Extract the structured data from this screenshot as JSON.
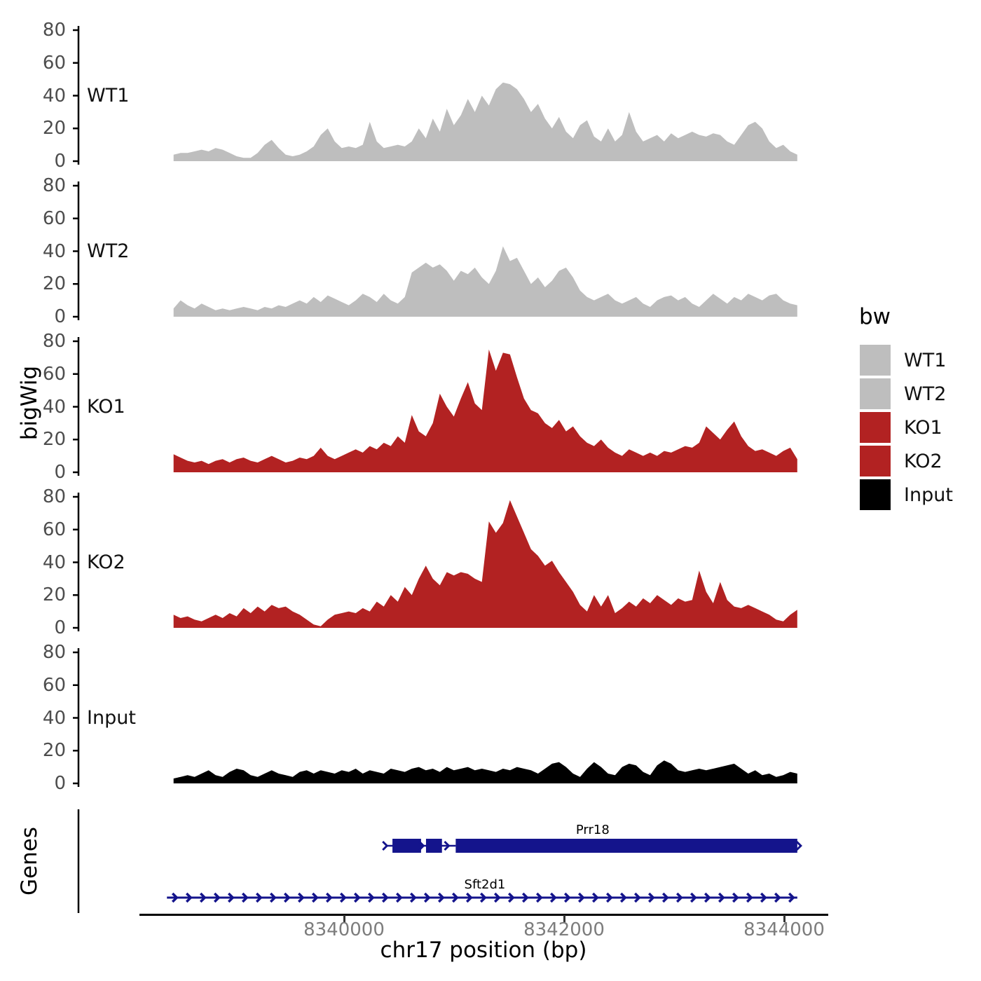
{
  "figure": {
    "y_axis_label": "bigWig",
    "genes_axis_label": "Genes",
    "x_axis": {
      "title": "chr17 position (bp)",
      "ticks": [
        {
          "bp": 8340000,
          "label": "8340000"
        },
        {
          "bp": 8342000,
          "label": "8342000"
        },
        {
          "bp": 8344000,
          "label": "8344000"
        }
      ]
    },
    "legend": {
      "title": "bw",
      "entries": [
        {
          "label": "WT1",
          "color": "#BEBEBE"
        },
        {
          "label": "WT2",
          "color": "#BEBEBE"
        },
        {
          "label": "KO1",
          "color": "#B22222"
        },
        {
          "label": "KO2",
          "color": "#B22222"
        },
        {
          "label": "Input",
          "color": "#000000"
        }
      ]
    }
  },
  "chart_data": {
    "type": "area",
    "title": "",
    "xlabel": "chr17 position (bp)",
    "ylabel": "bigWig",
    "x_range_bp": [
      8338450,
      8344120
    ],
    "ylim": [
      0,
      80
    ],
    "yticks": [
      0,
      20,
      40,
      60,
      80
    ],
    "grid": false,
    "legend_position": "right",
    "tracks": [
      {
        "name": "WT1",
        "color": "#BEBEBE",
        "values": [
          4,
          5,
          5,
          6,
          7,
          6,
          8,
          7,
          5,
          3,
          2,
          2,
          5,
          10,
          13,
          8,
          4,
          3,
          4,
          6,
          9,
          16,
          20,
          12,
          8,
          9,
          8,
          10,
          24,
          12,
          8,
          9,
          10,
          9,
          12,
          20,
          14,
          26,
          18,
          32,
          22,
          28,
          38,
          30,
          40,
          34,
          44,
          48,
          47,
          44,
          38,
          30,
          35,
          26,
          20,
          27,
          18,
          14,
          22,
          25,
          15,
          12,
          20,
          12,
          16,
          30,
          18,
          12,
          14,
          16,
          12,
          17,
          14,
          16,
          18,
          16,
          15,
          17,
          16,
          12,
          10,
          16,
          22,
          24,
          20,
          12,
          8,
          10,
          6,
          4
        ]
      },
      {
        "name": "WT2",
        "color": "#BEBEBE",
        "values": [
          5,
          10,
          7,
          5,
          8,
          6,
          4,
          5,
          4,
          5,
          6,
          5,
          4,
          6,
          5,
          7,
          6,
          8,
          10,
          8,
          12,
          9,
          13,
          11,
          9,
          7,
          10,
          14,
          12,
          9,
          14,
          10,
          8,
          12,
          27,
          30,
          33,
          30,
          32,
          28,
          22,
          28,
          26,
          30,
          24,
          20,
          28,
          43,
          34,
          36,
          28,
          20,
          24,
          18,
          22,
          28,
          30,
          24,
          16,
          12,
          10,
          12,
          14,
          10,
          8,
          10,
          12,
          8,
          6,
          10,
          12,
          13,
          10,
          12,
          8,
          6,
          10,
          14,
          11,
          8,
          12,
          10,
          14,
          12,
          10,
          13,
          14,
          10,
          8,
          7
        ]
      },
      {
        "name": "KO1",
        "color": "#B22222",
        "values": [
          11,
          9,
          7,
          6,
          7,
          5,
          7,
          8,
          6,
          8,
          9,
          7,
          6,
          8,
          10,
          8,
          6,
          7,
          9,
          8,
          10,
          15,
          10,
          8,
          10,
          12,
          14,
          12,
          16,
          14,
          18,
          16,
          22,
          18,
          35,
          25,
          22,
          30,
          48,
          40,
          34,
          45,
          55,
          42,
          38,
          75,
          62,
          73,
          72,
          58,
          45,
          38,
          36,
          30,
          27,
          32,
          25,
          28,
          22,
          18,
          16,
          20,
          15,
          12,
          10,
          14,
          12,
          10,
          12,
          10,
          13,
          12,
          14,
          16,
          15,
          18,
          28,
          24,
          20,
          26,
          31,
          22,
          16,
          13,
          14,
          12,
          10,
          13,
          15,
          8
        ]
      },
      {
        "name": "KO2",
        "color": "#B22222",
        "values": [
          8,
          6,
          7,
          5,
          4,
          6,
          8,
          6,
          9,
          7,
          12,
          9,
          13,
          10,
          14,
          12,
          13,
          10,
          8,
          5,
          2,
          1,
          5,
          8,
          9,
          10,
          9,
          12,
          10,
          16,
          13,
          20,
          16,
          25,
          20,
          30,
          38,
          30,
          26,
          34,
          32,
          34,
          33,
          30,
          28,
          65,
          58,
          64,
          78,
          68,
          58,
          48,
          44,
          38,
          41,
          34,
          28,
          22,
          14,
          10,
          20,
          13,
          20,
          9,
          12,
          16,
          13,
          18,
          15,
          20,
          17,
          14,
          18,
          16,
          17,
          35,
          22,
          15,
          28,
          17,
          13,
          12,
          14,
          12,
          10,
          8,
          5,
          4,
          8,
          11
        ]
      },
      {
        "name": "Input",
        "color": "#000000",
        "values": [
          3,
          4,
          5,
          4,
          6,
          8,
          5,
          4,
          7,
          9,
          8,
          5,
          4,
          6,
          8,
          6,
          5,
          4,
          7,
          8,
          6,
          8,
          7,
          6,
          8,
          7,
          9,
          6,
          8,
          7,
          6,
          9,
          8,
          7,
          9,
          10,
          8,
          9,
          7,
          10,
          8,
          9,
          10,
          8,
          9,
          8,
          7,
          9,
          8,
          10,
          9,
          8,
          6,
          9,
          12,
          13,
          10,
          6,
          4,
          9,
          13,
          10,
          6,
          5,
          10,
          12,
          11,
          7,
          5,
          11,
          14,
          12,
          8,
          7,
          8,
          9,
          8,
          9,
          10,
          11,
          12,
          9,
          6,
          8,
          5,
          6,
          4,
          5,
          7,
          6
        ]
      }
    ],
    "genes": [
      {
        "name": "Prr18",
        "strand": "+",
        "style": "exon-model",
        "color": "#14148C",
        "start_bp": 8340390,
        "end_bp": 8344120,
        "exons_bp": [
          [
            8340440,
            8340700
          ],
          [
            8340745,
            8340890
          ],
          [
            8341015,
            8344120
          ]
        ],
        "label_bp": 8342260
      },
      {
        "name": "Sft2d1",
        "strand": "+",
        "style": "arrow-line",
        "color": "#14148C",
        "start_bp": 8338390,
        "end_bp": 8344120,
        "label_bp": 8341280
      }
    ]
  }
}
